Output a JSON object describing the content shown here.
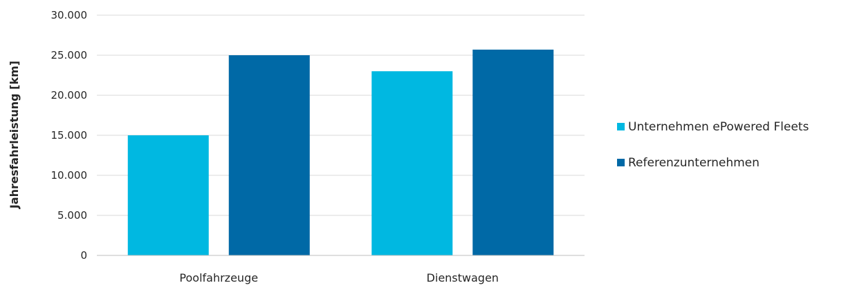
{
  "chart_data": {
    "type": "bar",
    "categories": [
      "Poolfahrzeuge",
      "Dienstwagen"
    ],
    "series": [
      {
        "name": "Unternehmen ePowered Fleets",
        "values": [
          15000,
          23000
        ],
        "color": "#00b8e1"
      },
      {
        "name": "Referenzunternehmen",
        "values": [
          25000,
          25700
        ],
        "color": "#0069a6"
      }
    ],
    "ylabel": "Jahresfahrleistung [km]",
    "ylim": [
      0,
      30000
    ],
    "yticks": [
      0,
      5000,
      10000,
      15000,
      20000,
      25000,
      30000
    ],
    "ytick_labels": [
      "0",
      "5.000",
      "10.000",
      "15.000",
      "20.000",
      "25.000",
      "30.000"
    ],
    "grid": true,
    "legend_position": "right"
  }
}
